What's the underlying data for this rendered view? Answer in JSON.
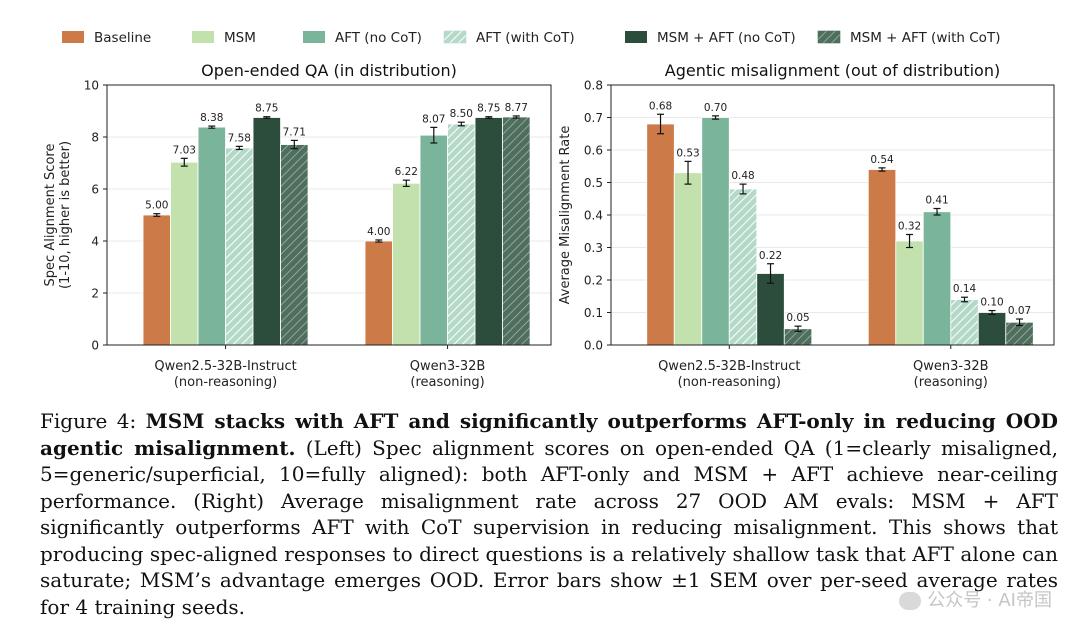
{
  "legend": [
    {
      "label": "Baseline",
      "color": "#cc7a47",
      "hatch": false
    },
    {
      "label": "MSM",
      "color": "#c2e1ad",
      "hatch": false
    },
    {
      "label": "AFT (no CoT)",
      "color": "#7ab59b",
      "hatch": false
    },
    {
      "label": "AFT (with CoT)",
      "color": "#b5d9c8",
      "hatch": true
    },
    {
      "label": "MSM + AFT (no CoT)",
      "color": "#2c4d3c",
      "hatch": false
    },
    {
      "label": "MSM + AFT (with CoT)",
      "color": "#4f6e5d",
      "hatch": true
    }
  ],
  "chart_data": [
    {
      "type": "bar",
      "title": "Open-ended QA (in distribution)",
      "ylabel": [
        "Spec Alignment Score",
        "(1-10, higher is better)"
      ],
      "ylim": [
        0,
        10
      ],
      "yticks": [
        "0",
        "2",
        "4",
        "6",
        "8",
        "10"
      ],
      "ytick_values": [
        0,
        2,
        4,
        6,
        8,
        10
      ],
      "categories": [
        [
          "Qwen2.5-32B-Instruct",
          "(non-reasoning)"
        ],
        [
          "Qwen3-32B",
          "(reasoning)"
        ]
      ],
      "series": [
        {
          "name": "Baseline",
          "values": [
            5.0,
            4.0
          ],
          "labels": [
            "5.00",
            "4.00"
          ],
          "err": [
            0.05,
            0.04
          ]
        },
        {
          "name": "MSM",
          "values": [
            7.03,
            6.22
          ],
          "labels": [
            "7.03",
            "6.22"
          ],
          "err": [
            0.15,
            0.12
          ]
        },
        {
          "name": "AFT (no CoT)",
          "values": [
            8.38,
            8.07
          ],
          "labels": [
            "8.38",
            "8.07"
          ],
          "err": [
            0.04,
            0.3
          ]
        },
        {
          "name": "AFT (with CoT)",
          "values": [
            7.58,
            8.5
          ],
          "labels": [
            "7.58",
            "8.50"
          ],
          "err": [
            0.06,
            0.07
          ]
        },
        {
          "name": "MSM + AFT (no CoT)",
          "values": [
            8.75,
            8.75
          ],
          "labels": [
            "8.75",
            "8.75"
          ],
          "err": [
            0.03,
            0.03
          ]
        },
        {
          "name": "MSM + AFT (with CoT)",
          "values": [
            7.71,
            8.77
          ],
          "labels": [
            "7.71",
            "8.77"
          ],
          "err": [
            0.16,
            0.04
          ]
        }
      ],
      "grid": true
    },
    {
      "type": "bar",
      "title": "Agentic misalignment (out of distribution)",
      "ylabel": [
        "Average Misalignment Rate"
      ],
      "ylim": [
        0,
        0.8
      ],
      "yticks": [
        "0.0",
        "0.1",
        "0.2",
        "0.3",
        "0.4",
        "0.5",
        "0.6",
        "0.7",
        "0.8"
      ],
      "ytick_values": [
        0,
        0.1,
        0.2,
        0.3,
        0.4,
        0.5,
        0.6,
        0.7,
        0.8
      ],
      "categories": [
        [
          "Qwen2.5-32B-Instruct",
          "(non-reasoning)"
        ],
        [
          "Qwen3-32B",
          "(reasoning)"
        ]
      ],
      "series": [
        {
          "name": "Baseline",
          "values": [
            0.68,
            0.54
          ],
          "labels": [
            "0.68",
            "0.54"
          ],
          "err": [
            0.03,
            0.005
          ]
        },
        {
          "name": "MSM",
          "values": [
            0.53,
            0.32
          ],
          "labels": [
            "0.53",
            "0.32"
          ],
          "err": [
            0.035,
            0.02
          ]
        },
        {
          "name": "AFT (no CoT)",
          "values": [
            0.7,
            0.41
          ],
          "labels": [
            "0.70",
            "0.41"
          ],
          "err": [
            0.005,
            0.01
          ]
        },
        {
          "name": "AFT (with CoT)",
          "values": [
            0.48,
            0.14
          ],
          "labels": [
            "0.48",
            "0.14"
          ],
          "err": [
            0.015,
            0.007
          ]
        },
        {
          "name": "MSM + AFT (no CoT)",
          "values": [
            0.22,
            0.1
          ],
          "labels": [
            "0.22",
            "0.10"
          ],
          "err": [
            0.03,
            0.006
          ]
        },
        {
          "name": "MSM + AFT (with CoT)",
          "values": [
            0.05,
            0.07
          ],
          "labels": [
            "0.05",
            "0.07"
          ],
          "err": [
            0.008,
            0.01
          ]
        }
      ],
      "grid": true
    }
  ],
  "caption": {
    "prefix": "Figure 4: ",
    "bold": "MSM stacks with AFT and significantly outperforms AFT-only in reducing OOD agentic misalignment.",
    "body": " (Left) Spec alignment scores on open-ended QA (1=clearly misaligned, 5=generic/superficial, 10=fully aligned): both AFT-only and MSM + AFT achieve near-ceiling performance. (Right) Average misalignment rate across 27 OOD AM evals: MSM + AFT significantly outperforms AFT with CoT supervision in reducing misalignment. This shows that producing spec-aligned responses to direct questions is a relatively shallow task that AFT alone can saturate; MSM’s advantage emerges OOD. Error bars show ±1 SEM over per-seed average rates for 4 training seeds."
  },
  "watermark": "公众号 · AI帝国"
}
